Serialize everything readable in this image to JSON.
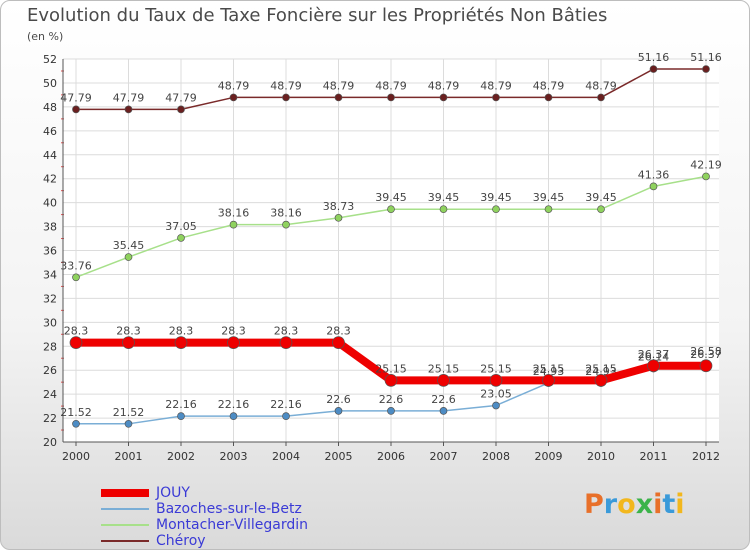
{
  "header": {
    "title": "Evolution du Taux de Taxe Foncière sur les Propriétés Non Bâties",
    "unit": "(en %)"
  },
  "logo": {
    "text": "Proxiti",
    "colors": [
      "#e8702a",
      "#3a9ad9",
      "#f2b71d",
      "#3bb34a",
      "#e8702a",
      "#3a9ad9",
      "#f2b71d"
    ]
  },
  "chart_data": {
    "type": "line",
    "title": "Evolution du Taux de Taxe Foncière sur les Propriétés Non Bâties",
    "ylabel": "(en %)",
    "xlabel": "",
    "x": [
      "2000",
      "2001",
      "2002",
      "2003",
      "2004",
      "2005",
      "2006",
      "2007",
      "2008",
      "2009",
      "2010",
      "2011",
      "2012"
    ],
    "ylim": [
      20,
      52
    ],
    "yticks": [
      "20",
      "22",
      "24",
      "26",
      "28",
      "30",
      "32",
      "34",
      "36",
      "38",
      "40",
      "42",
      "44",
      "46",
      "48",
      "50",
      "52"
    ],
    "grid": true,
    "legend_position": "bottom-left",
    "series": [
      {
        "name": "Chéroy",
        "color": "#7a2a2a",
        "values": [
          47.79,
          47.79,
          47.79,
          48.79,
          48.79,
          48.79,
          48.79,
          48.79,
          48.79,
          48.79,
          48.79,
          51.16,
          51.16
        ],
        "labels": [
          "47.79",
          "47.79",
          "47.79",
          "48.79",
          "48.79",
          "48.79",
          "48.79",
          "48.79",
          "48.79",
          "48.79",
          "48.79",
          "51.16",
          "51.16"
        ]
      },
      {
        "name": "Montacher-Villegardin",
        "color": "#a7e08a",
        "values": [
          33.76,
          35.45,
          37.05,
          38.16,
          38.16,
          38.73,
          39.45,
          39.45,
          39.45,
          39.45,
          39.45,
          41.36,
          42.19
        ],
        "labels": [
          "33.76",
          "35.45",
          "37.05",
          "38.16",
          "38.16",
          "38.73",
          "39.45",
          "39.45",
          "39.45",
          "39.45",
          "39.45",
          "41.36",
          "42.19"
        ]
      },
      {
        "name": "Bazoches-sur-le-Betz",
        "color": "#7aaed6",
        "values": [
          21.52,
          21.52,
          22.16,
          22.16,
          22.16,
          22.6,
          22.6,
          22.6,
          23.05,
          24.93,
          24.93,
          26.14,
          26.58
        ],
        "labels": [
          "21.52",
          "21.52",
          "22.16",
          "22.16",
          "22.16",
          "22.6",
          "22.6",
          "22.6",
          "23.05",
          "24.93",
          "24.93",
          "26.14",
          "26.58"
        ]
      },
      {
        "name": "JOUY",
        "color": "#ee0000",
        "values": [
          28.3,
          28.3,
          28.3,
          28.3,
          28.3,
          28.3,
          25.15,
          25.15,
          25.15,
          25.15,
          25.15,
          26.37,
          26.37
        ],
        "labels": [
          "28.3",
          "28.3",
          "28.3",
          "28.3",
          "28.3",
          "28.3",
          "25.15",
          "25.15",
          "25.15",
          "25.15",
          "25.15",
          "26.37",
          "26.37"
        ]
      }
    ],
    "legend": [
      "JOUY",
      "Bazoches-sur-le-Betz",
      "Montacher-Villegardin",
      "Chéroy"
    ]
  }
}
